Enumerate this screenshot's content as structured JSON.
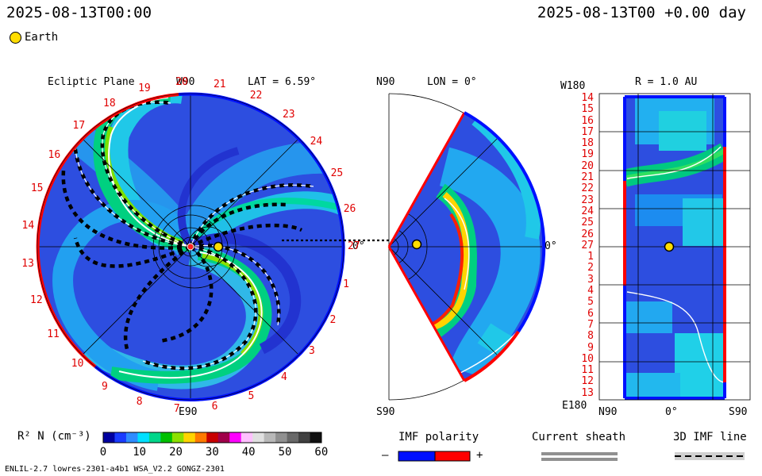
{
  "header": {
    "left_time": "2025-08-13T00:00",
    "right_time": "2025-08-13T00 +0.00 day"
  },
  "earth_legend": {
    "label": "Earth",
    "color": "#ffdd00"
  },
  "ecliptic": {
    "title": "Ecliptic Plane",
    "top_label": "W90",
    "bottom_label": "E90",
    "lat_label": "LAT = 6.59°",
    "right_label": "0°",
    "rim_numbers": [
      "20",
      "21",
      "22",
      "23",
      "24",
      "25",
      "26",
      "27",
      "1",
      "2",
      "3",
      "4",
      "5",
      "6",
      "7",
      "8",
      "9",
      "10",
      "11",
      "12",
      "13",
      "14",
      "15",
      "16",
      "17",
      "18",
      "19"
    ]
  },
  "meridional": {
    "top_label": "N90",
    "bottom_label": "S90",
    "lon_label": "LON = 0°",
    "right_label": "0°"
  },
  "radial": {
    "title": "R = 1.0 AU",
    "top_label": "W180",
    "bottom_label": "E180",
    "x_left": "N90",
    "x_mid": "0°",
    "x_right": "S90",
    "rows": [
      "14",
      "15",
      "16",
      "17",
      "18",
      "19",
      "20",
      "21",
      "22",
      "23",
      "24",
      "25",
      "26",
      "27",
      "1",
      "2",
      "3",
      "4",
      "5",
      "6",
      "7",
      "8",
      "9",
      "10",
      "11",
      "12",
      "13"
    ]
  },
  "colorbar": {
    "label": "R² N (cm⁻³)",
    "ticks": [
      "0",
      "10",
      "20",
      "30",
      "40",
      "50",
      "60"
    ],
    "colors": [
      "#0000a0",
      "#1a3cff",
      "#2f8cff",
      "#00e0ff",
      "#00d68a",
      "#00c000",
      "#8ce000",
      "#ffd400",
      "#ff7a00",
      "#c80000",
      "#a0004a",
      "#ff00ff",
      "#ffc0ff",
      "#e0e0e0",
      "#b8b8b8",
      "#909090",
      "#686868",
      "#404040",
      "#101010"
    ]
  },
  "imf_polarity": {
    "title": "IMF polarity",
    "minus": "–",
    "plus": "+",
    "neg_color": "#0010ff",
    "pos_color": "#ff0000"
  },
  "current_sheath": {
    "title": "Current sheath"
  },
  "imf_line": {
    "title": "3D IMF line"
  },
  "footer": {
    "model": "ENLIL-2.7 lowres-2301-a4b1 WSA_V2.2 GONGZ-2301"
  }
}
